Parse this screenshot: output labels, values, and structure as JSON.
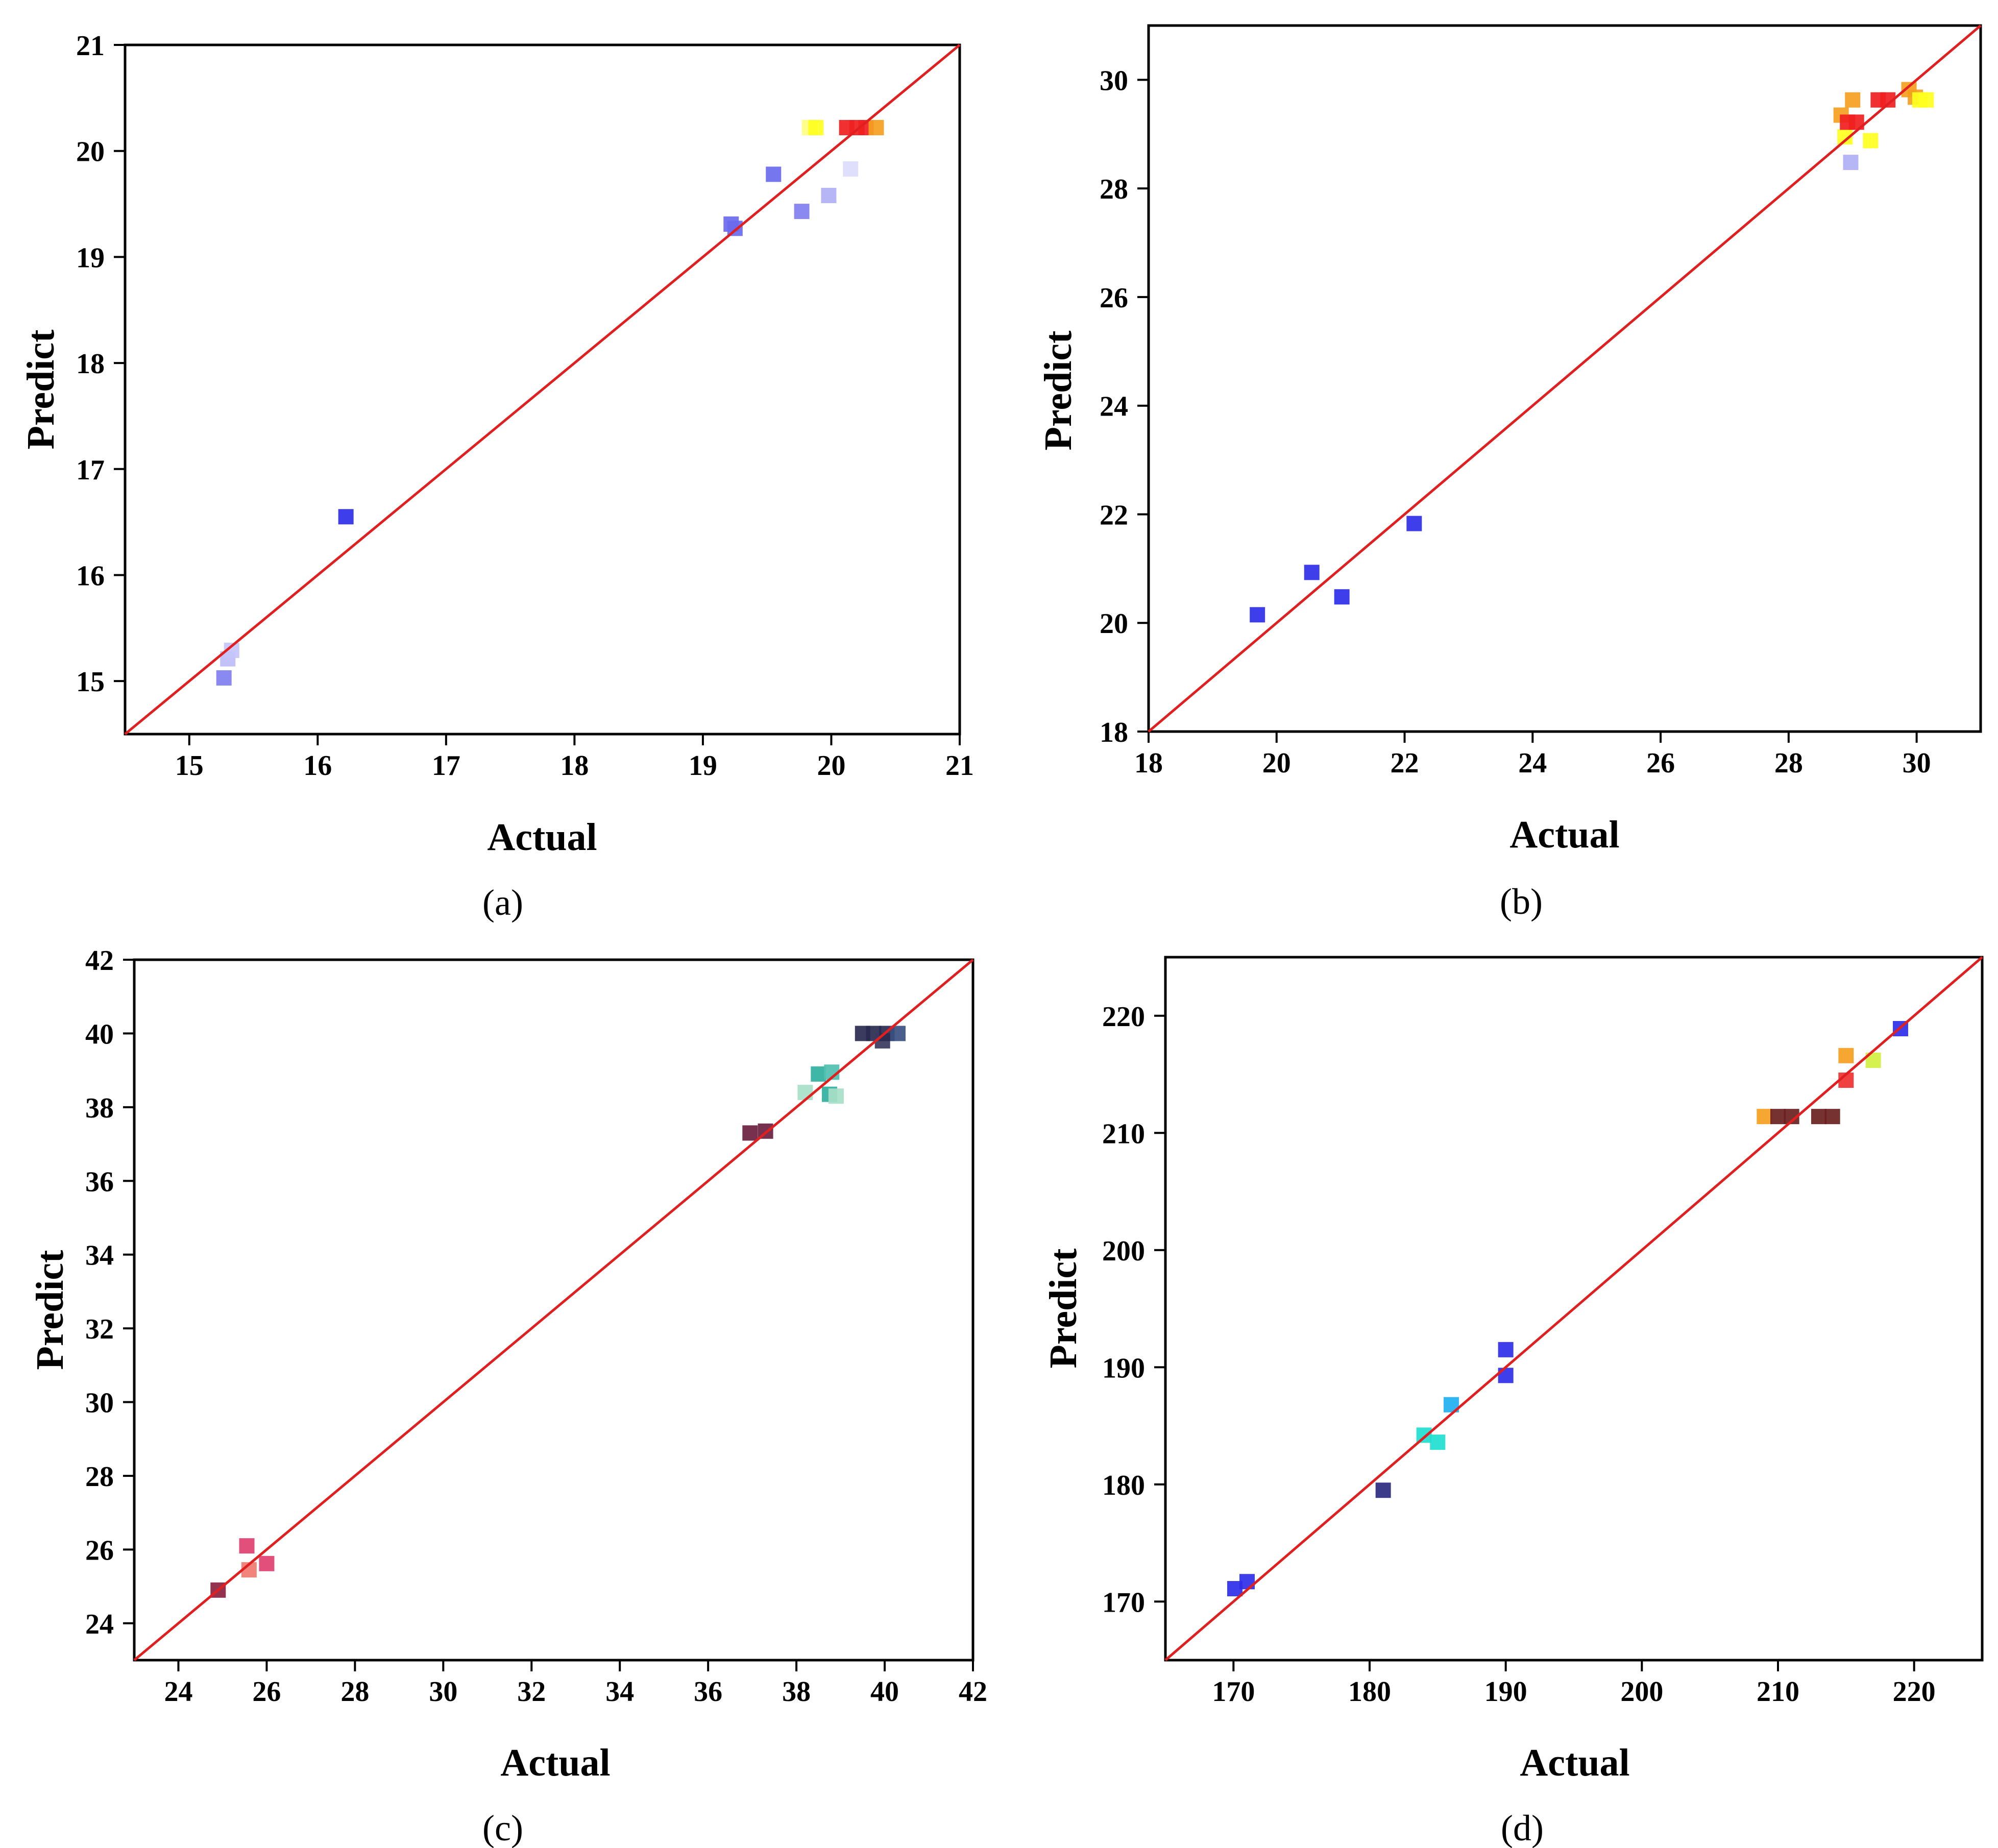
{
  "chart_data": [
    {
      "type": "scatter",
      "panel": "a",
      "caption": "(a)",
      "xlabel": "Actual",
      "ylabel": "Predict",
      "xlim": [
        14.5,
        21
      ],
      "ylim": [
        14.5,
        21
      ],
      "xticks": [
        15,
        16,
        17,
        18,
        19,
        20,
        21
      ],
      "yticks": [
        15,
        16,
        17,
        18,
        19,
        20,
        21
      ],
      "reference_line": "y = x",
      "line_color": "#e02020",
      "points": [
        {
          "x": 15.27,
          "y": 15.03,
          "color": "#7f7ff0"
        },
        {
          "x": 15.3,
          "y": 15.21,
          "color": "#bdbdf8"
        },
        {
          "x": 15.33,
          "y": 15.29,
          "color": "#c6c6fa"
        },
        {
          "x": 16.22,
          "y": 16.55,
          "color": "#2e2ee8"
        },
        {
          "x": 19.22,
          "y": 19.31,
          "color": "#6a6aee"
        },
        {
          "x": 19.25,
          "y": 19.27,
          "color": "#6a6aee"
        },
        {
          "x": 19.55,
          "y": 19.78,
          "color": "#6a6aee"
        },
        {
          "x": 19.77,
          "y": 19.43,
          "color": "#7f7ff0"
        },
        {
          "x": 19.98,
          "y": 19.58,
          "color": "#b0b0f6"
        },
        {
          "x": 20.15,
          "y": 19.83,
          "color": "#dcdcfc"
        },
        {
          "x": 19.83,
          "y": 20.22,
          "color": "#ffff80"
        },
        {
          "x": 19.88,
          "y": 20.22,
          "color": "#ffff20"
        },
        {
          "x": 20.12,
          "y": 20.22,
          "color": "#f02020"
        },
        {
          "x": 20.2,
          "y": 20.22,
          "color": "#f02020"
        },
        {
          "x": 20.27,
          "y": 20.22,
          "color": "#f02020"
        },
        {
          "x": 20.35,
          "y": 20.22,
          "color": "#f5a020"
        }
      ]
    },
    {
      "type": "scatter",
      "panel": "b",
      "caption": "(b)",
      "xlabel": "Actual",
      "ylabel": "Predict",
      "xlim": [
        18,
        31
      ],
      "ylim": [
        18,
        31
      ],
      "xticks": [
        18,
        20,
        22,
        24,
        26,
        28,
        30
      ],
      "yticks": [
        18,
        20,
        22,
        24,
        26,
        28,
        30
      ],
      "reference_line": "y = x",
      "line_color": "#e02020",
      "points": [
        {
          "x": 19.7,
          "y": 20.15,
          "color": "#2e2ee8"
        },
        {
          "x": 20.55,
          "y": 20.93,
          "color": "#2e2ee8"
        },
        {
          "x": 21.02,
          "y": 20.48,
          "color": "#2e2ee8"
        },
        {
          "x": 22.15,
          "y": 21.83,
          "color": "#2e2ee8"
        },
        {
          "x": 28.82,
          "y": 29.35,
          "color": "#f5a020"
        },
        {
          "x": 28.88,
          "y": 28.95,
          "color": "#ffff20"
        },
        {
          "x": 28.92,
          "y": 29.22,
          "color": "#f02020"
        },
        {
          "x": 28.97,
          "y": 28.48,
          "color": "#b0b0f6"
        },
        {
          "x": 29.0,
          "y": 29.63,
          "color": "#f5a020"
        },
        {
          "x": 29.06,
          "y": 29.22,
          "color": "#f02020"
        },
        {
          "x": 29.28,
          "y": 28.88,
          "color": "#ffff20"
        },
        {
          "x": 29.4,
          "y": 29.63,
          "color": "#f02020"
        },
        {
          "x": 29.55,
          "y": 29.63,
          "color": "#f02020"
        },
        {
          "x": 29.88,
          "y": 29.82,
          "color": "#f5a020"
        },
        {
          "x": 29.98,
          "y": 29.68,
          "color": "#f5a020"
        },
        {
          "x": 30.05,
          "y": 29.63,
          "color": "#ffff20"
        },
        {
          "x": 30.15,
          "y": 29.63,
          "color": "#ffff20"
        }
      ]
    },
    {
      "type": "scatter",
      "panel": "c",
      "caption": "(c)",
      "xlabel": "Actual",
      "ylabel": "Predict",
      "xlim": [
        23,
        42
      ],
      "ylim": [
        23,
        42
      ],
      "xticks": [
        24,
        26,
        28,
        30,
        32,
        34,
        36,
        38,
        40,
        42
      ],
      "yticks": [
        24,
        26,
        28,
        30,
        32,
        34,
        36,
        38,
        40,
        42
      ],
      "reference_line": "y = x",
      "line_color": "#e02020",
      "points": [
        {
          "x": 24.9,
          "y": 24.9,
          "color": "#8a2040"
        },
        {
          "x": 25.55,
          "y": 26.1,
          "color": "#e04070"
        },
        {
          "x": 25.6,
          "y": 25.45,
          "color": "#f07a70"
        },
        {
          "x": 26.0,
          "y": 25.62,
          "color": "#e04070"
        },
        {
          "x": 36.95,
          "y": 37.3,
          "color": "#6a2040"
        },
        {
          "x": 37.3,
          "y": 37.35,
          "color": "#6a2040"
        },
        {
          "x": 38.2,
          "y": 38.4,
          "color": "#a8e0c8"
        },
        {
          "x": 38.5,
          "y": 38.9,
          "color": "#30b0a0"
        },
        {
          "x": 38.75,
          "y": 38.35,
          "color": "#30b0a0"
        },
        {
          "x": 38.9,
          "y": 38.3,
          "color": "#a8e0c8"
        },
        {
          "x": 38.8,
          "y": 38.95,
          "color": "#50c0b0"
        },
        {
          "x": 39.5,
          "y": 40.0,
          "color": "#2a2a50"
        },
        {
          "x": 39.75,
          "y": 40.0,
          "color": "#2a2a50"
        },
        {
          "x": 39.95,
          "y": 39.8,
          "color": "#3a3a60"
        },
        {
          "x": 40.05,
          "y": 40.0,
          "color": "#2a2a50"
        },
        {
          "x": 40.3,
          "y": 40.0,
          "color": "#3a5080"
        }
      ]
    },
    {
      "type": "scatter",
      "panel": "d",
      "caption": "(d)",
      "xlabel": "Actual",
      "ylabel": "Predict",
      "xlim": [
        165,
        225
      ],
      "ylim": [
        165,
        225
      ],
      "xticks": [
        170,
        180,
        190,
        200,
        210,
        220
      ],
      "yticks": [
        170,
        180,
        190,
        200,
        210,
        220
      ],
      "reference_line": "y = x",
      "line_color": "#e02020",
      "points": [
        {
          "x": 170.1,
          "y": 171.1,
          "color": "#2e2ee8"
        },
        {
          "x": 171.0,
          "y": 171.7,
          "color": "#2e2ee8"
        },
        {
          "x": 181.0,
          "y": 179.5,
          "color": "#2a2a80"
        },
        {
          "x": 184.0,
          "y": 184.2,
          "color": "#20e0d0"
        },
        {
          "x": 185.0,
          "y": 183.6,
          "color": "#20e0d0"
        },
        {
          "x": 186.0,
          "y": 186.8,
          "color": "#20b0f0"
        },
        {
          "x": 190.0,
          "y": 191.5,
          "color": "#2e2ee8"
        },
        {
          "x": 190.0,
          "y": 189.3,
          "color": "#2e2ee8"
        },
        {
          "x": 209.0,
          "y": 211.4,
          "color": "#f5a020"
        },
        {
          "x": 210.0,
          "y": 211.4,
          "color": "#6a2020"
        },
        {
          "x": 211.0,
          "y": 211.4,
          "color": "#6a2020"
        },
        {
          "x": 213.0,
          "y": 211.4,
          "color": "#6a2020"
        },
        {
          "x": 214.0,
          "y": 211.4,
          "color": "#6a2020"
        },
        {
          "x": 215.0,
          "y": 216.6,
          "color": "#f5a020"
        },
        {
          "x": 215.0,
          "y": 214.5,
          "color": "#f03030"
        },
        {
          "x": 217.0,
          "y": 216.2,
          "color": "#d0f040"
        },
        {
          "x": 219.0,
          "y": 218.9,
          "color": "#2e2ee8"
        }
      ]
    }
  ]
}
